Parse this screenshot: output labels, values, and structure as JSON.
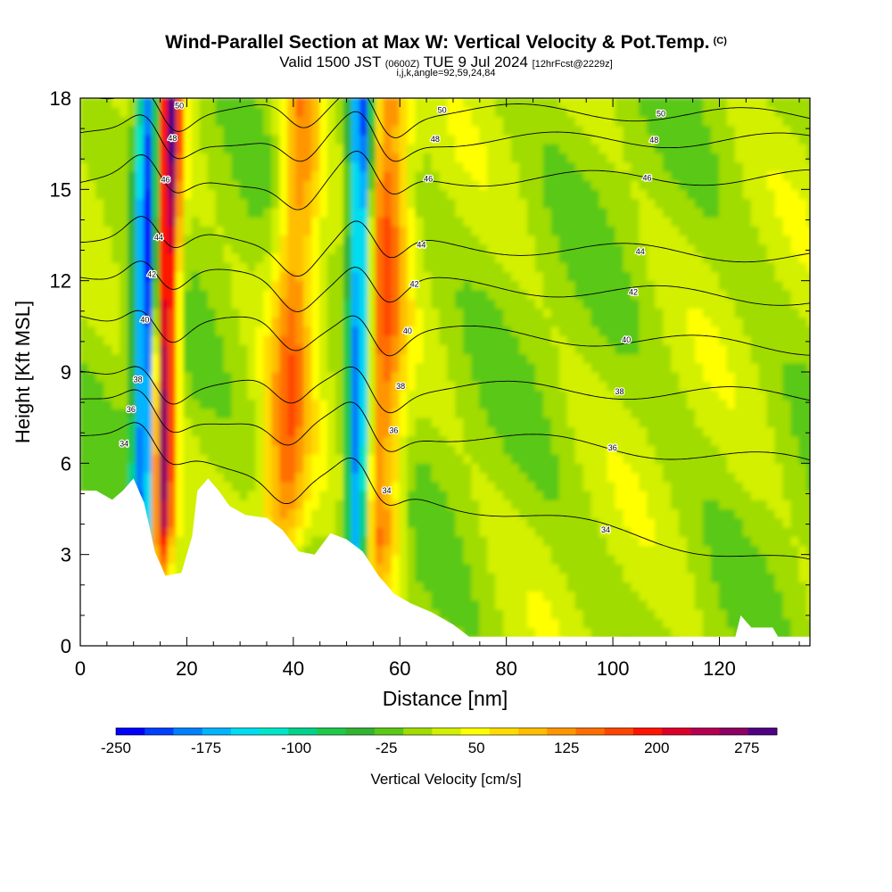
{
  "header": {
    "title": "Wind-Parallel Section at Max W: Vertical Velocity & Pot.Temp.",
    "copyright": "(C)",
    "valid_prefix": "Valid 1500 JST",
    "valid_utc": "(0600Z)",
    "valid_date": "TUE 9 Jul 2024",
    "forecast": "[12hrFcst@2229z]",
    "indices": "i,j,k,angle=92,59,24,84"
  },
  "chart_data": {
    "type": "heatmap",
    "title": "Wind-Parallel Section at Max W: Vertical Velocity & Pot.Temp.",
    "xlabel": "Distance [nm]",
    "ylabel": "Height [Kft MSL]",
    "xlim": [
      0,
      137
    ],
    "ylim": [
      0,
      18
    ],
    "x_ticks": [
      "0",
      "20",
      "40",
      "60",
      "80",
      "100",
      "120"
    ],
    "y_ticks": [
      "0",
      "3",
      "6",
      "9",
      "12",
      "15",
      "18"
    ],
    "colorbar": {
      "label": "Vertical Velocity [cm/s]",
      "tick_labels": [
        "-250",
        "-175",
        "-100",
        "-25",
        "50",
        "125",
        "200",
        "275"
      ],
      "min": -250,
      "max": 300,
      "step": 25,
      "colors": [
        "#0000ff",
        "#0040ff",
        "#0080ff",
        "#00b4ff",
        "#00dcf0",
        "#00e6c8",
        "#00d28c",
        "#1ec84b",
        "#32b432",
        "#5ac814",
        "#a0dc00",
        "#d2f000",
        "#ffff00",
        "#ffdc00",
        "#ffbe00",
        "#ff9600",
        "#ff6e00",
        "#ff4600",
        "#ff1400",
        "#dc0028",
        "#b40050",
        "#8c0064",
        "#500082"
      ]
    },
    "vertical_velocity_features": [
      {
        "kind": "updraft",
        "x_center_low": 15,
        "x_center_high": 17,
        "z_bottom": 2.5,
        "z_top": 18,
        "peak": 280
      },
      {
        "kind": "downdraft",
        "x_center_low": 12,
        "x_center_high": 13,
        "z_bottom": 2.5,
        "z_top": 18,
        "peak": -250
      },
      {
        "kind": "updraft",
        "x_center_low": 38,
        "x_center_high": 42,
        "z_bottom": 3,
        "z_top": 18,
        "peak": 130
      },
      {
        "kind": "downdraft",
        "x_center_low": 52,
        "x_center_high": 53,
        "z_bottom": 2,
        "z_top": 18,
        "peak": -250
      },
      {
        "kind": "updraft",
        "x_center_low": 56,
        "x_center_high": 58,
        "z_bottom": 2,
        "z_top": 18,
        "peak": 140
      }
    ],
    "potential_temperature_contours": [
      {
        "label": "34",
        "z_left": 6.9,
        "z_right": 2.6
      },
      {
        "label": "36",
        "z_left": 7.9,
        "z_right": 6.0
      },
      {
        "label": "38",
        "z_left": 8.8,
        "z_right": 8.2
      },
      {
        "label": "40",
        "z_left": 10.8,
        "z_right": 9.8
      },
      {
        "label": "42",
        "z_left": 12.3,
        "z_right": 11.4
      },
      {
        "label": "44",
        "z_left": 13.5,
        "z_right": 12.8
      },
      {
        "label": "46",
        "z_left": 15.3,
        "z_right": 15.4
      },
      {
        "label": "48",
        "z_left": 16.7,
        "z_right": 16.6
      },
      {
        "label": "50",
        "z_left": 17.8,
        "z_right": 17.4
      }
    ],
    "terrain_profile_kft": [
      [
        0,
        5.1
      ],
      [
        3,
        5.1
      ],
      [
        6,
        4.8
      ],
      [
        8,
        5.1
      ],
      [
        10,
        5.5
      ],
      [
        12,
        4.7
      ],
      [
        14,
        3.1
      ],
      [
        16,
        2.3
      ],
      [
        19,
        2.4
      ],
      [
        21,
        3.6
      ],
      [
        22,
        5.1
      ],
      [
        24,
        5.5
      ],
      [
        26,
        5.1
      ],
      [
        28,
        4.6
      ],
      [
        31,
        4.3
      ],
      [
        35,
        4.2
      ],
      [
        38,
        3.8
      ],
      [
        41,
        3.1
      ],
      [
        44,
        3.0
      ],
      [
        47,
        3.7
      ],
      [
        50,
        3.5
      ],
      [
        53,
        3.1
      ],
      [
        56,
        2.3
      ],
      [
        59,
        1.7
      ],
      [
        62,
        1.4
      ],
      [
        66,
        1.1
      ],
      [
        70,
        0.7
      ],
      [
        73,
        0.3
      ],
      [
        120,
        0.3
      ],
      [
        123,
        0.3
      ],
      [
        124,
        1.0
      ],
      [
        126,
        0.6
      ],
      [
        130,
        0.6
      ],
      [
        131,
        0.3
      ],
      [
        137,
        0.3
      ]
    ]
  }
}
